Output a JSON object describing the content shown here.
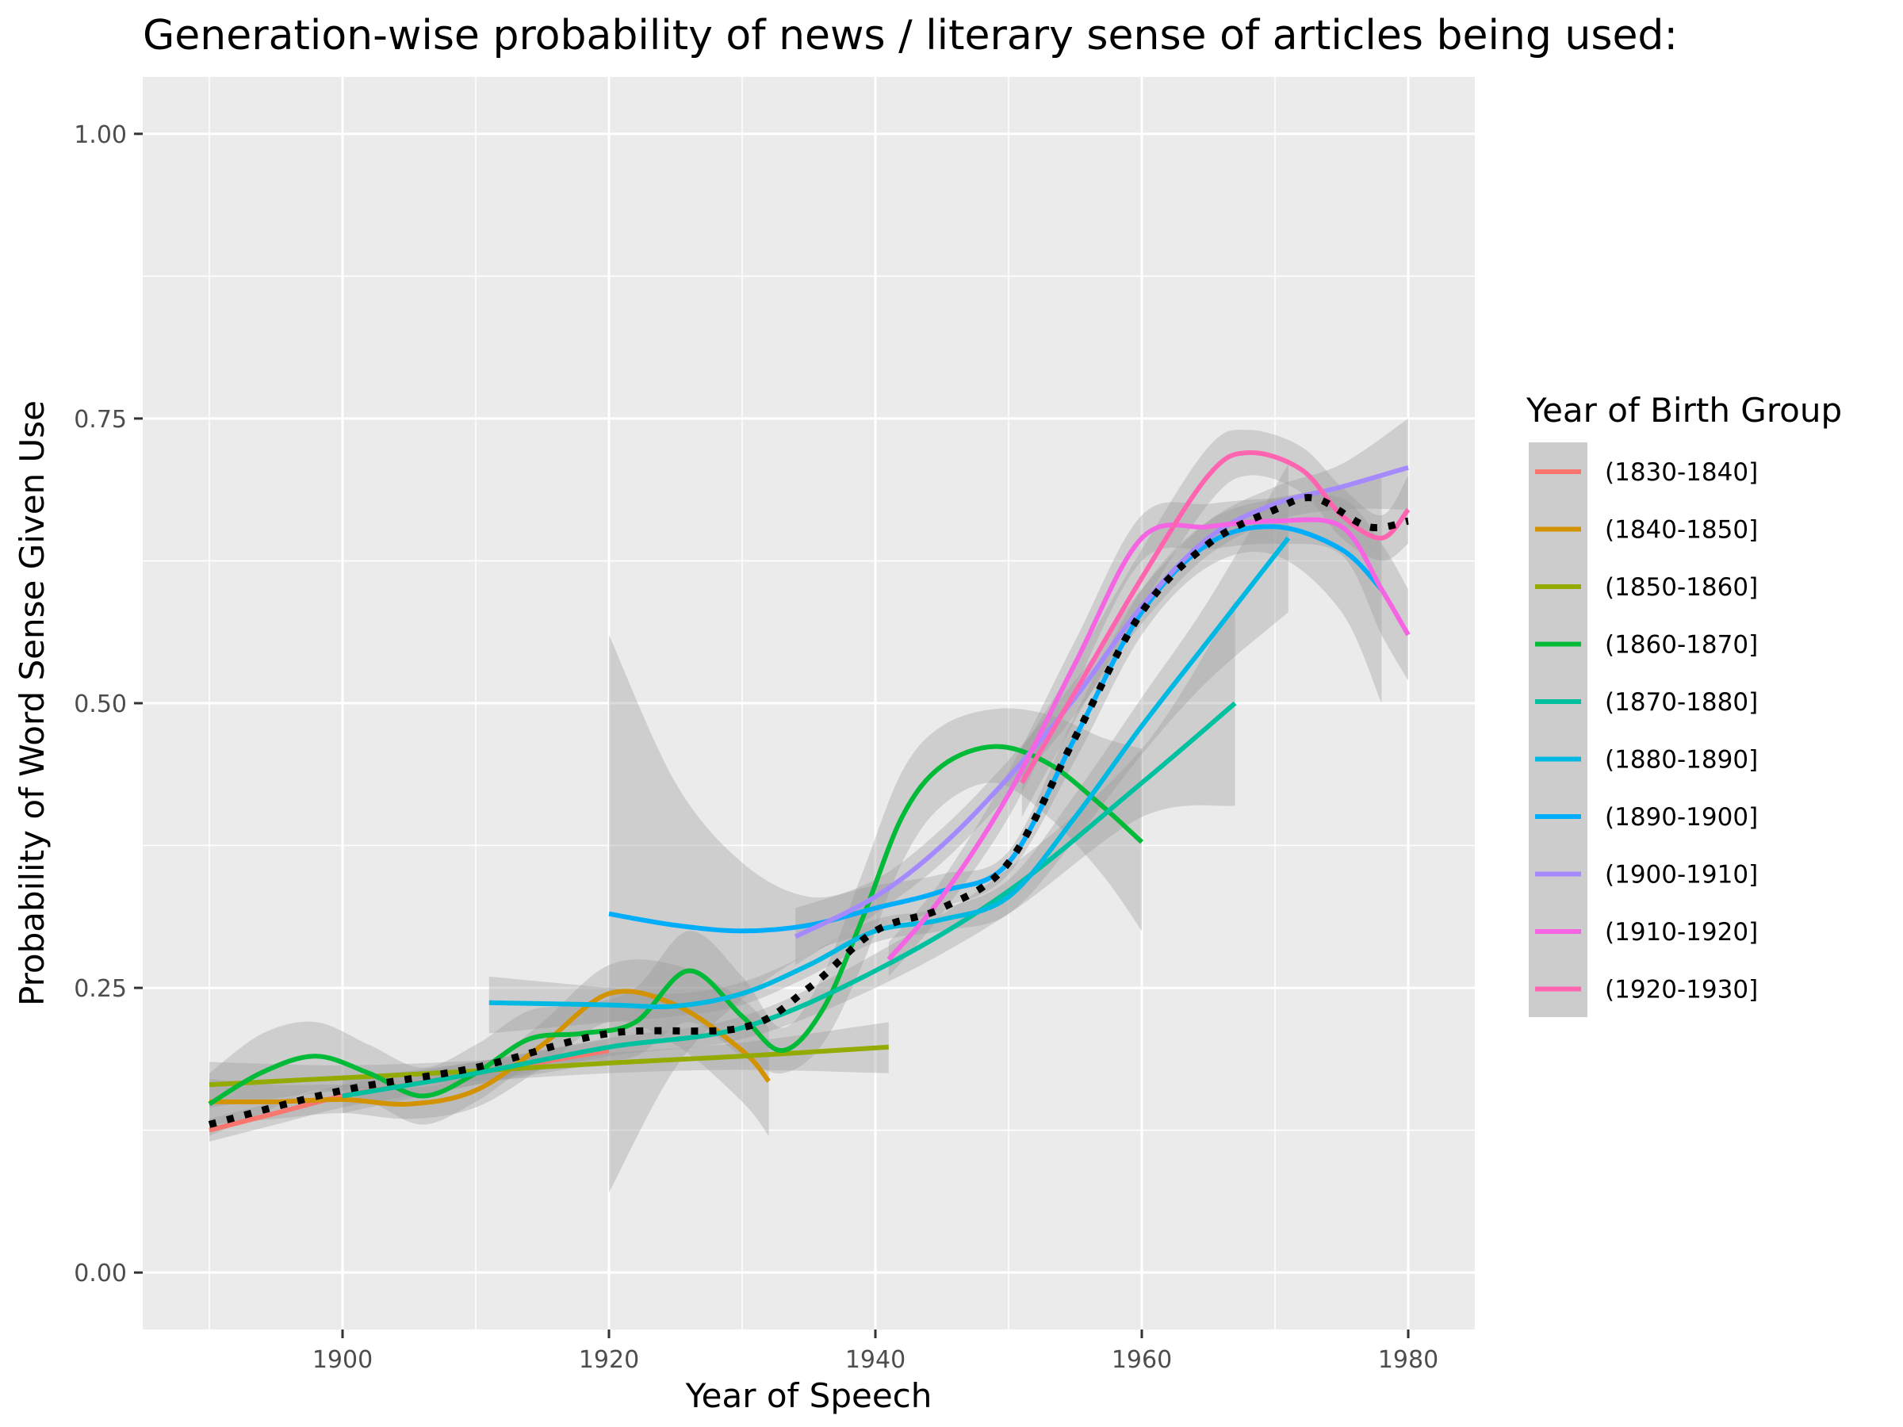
{
  "chart_data": {
    "type": "line",
    "title": "Generation-wise probability of news / literary sense of articles being used:",
    "xlabel": "Year of Speech",
    "ylabel": "Probability of Word Sense Given Use",
    "xlim": [
      1885,
      1985
    ],
    "ylim": [
      -0.05,
      1.05
    ],
    "x_ticks": [
      1900,
      1920,
      1940,
      1960,
      1980
    ],
    "x_tick_labels": [
      "1900",
      "1920",
      "1940",
      "1960",
      "1980"
    ],
    "y_ticks": [
      0,
      0.25,
      0.5,
      0.75,
      1
    ],
    "y_tick_labels": [
      "0.00",
      "0.25",
      "0.50",
      "0.75",
      "1.00"
    ],
    "grid": true,
    "legend": {
      "title": "Year of Birth Group",
      "position": "right"
    },
    "series": [
      {
        "name": "(1830-1840]",
        "color": "#F8766D",
        "x": [
          1890,
          1895,
          1900,
          1905,
          1910,
          1915,
          1920
        ],
        "y": [
          0.125,
          0.14,
          0.155,
          0.165,
          0.175,
          0.185,
          0.195
        ],
        "band_lo": [
          0.115,
          0.13,
          0.145,
          0.155,
          0.165,
          0.175,
          0.185
        ],
        "band_hi": [
          0.135,
          0.15,
          0.165,
          0.175,
          0.185,
          0.195,
          0.205
        ]
      },
      {
        "name": "(1840-1850]",
        "color": "#D39200",
        "x": [
          1890,
          1895,
          1900,
          1905,
          1910,
          1915,
          1920,
          1925,
          1930,
          1932
        ],
        "y": [
          0.15,
          0.15,
          0.152,
          0.148,
          0.16,
          0.2,
          0.245,
          0.235,
          0.195,
          0.168
        ],
        "band_lo": [
          0.13,
          0.135,
          0.14,
          0.135,
          0.145,
          0.18,
          0.22,
          0.2,
          0.15,
          0.12
        ],
        "band_hi": [
          0.17,
          0.165,
          0.165,
          0.162,
          0.175,
          0.22,
          0.27,
          0.27,
          0.24,
          0.215
        ]
      },
      {
        "name": "(1850-1860]",
        "color": "#93AA00",
        "x": [
          1890,
          1900,
          1910,
          1920,
          1930,
          1941
        ],
        "y": [
          0.165,
          0.171,
          0.177,
          0.184,
          0.19,
          0.198
        ],
        "band_lo": [
          0.145,
          0.16,
          0.168,
          0.175,
          0.178,
          0.175
        ],
        "band_hi": [
          0.185,
          0.182,
          0.186,
          0.193,
          0.202,
          0.22
        ]
      },
      {
        "name": "(1860-1870]",
        "color": "#00BA38",
        "x": [
          1890,
          1894,
          1898,
          1902,
          1906,
          1910,
          1914,
          1918,
          1922,
          1926,
          1930,
          1933,
          1936,
          1939,
          1942,
          1945,
          1949,
          1953,
          1957,
          1960
        ],
        "y": [
          0.148,
          0.176,
          0.19,
          0.175,
          0.155,
          0.175,
          0.205,
          0.21,
          0.22,
          0.265,
          0.225,
          0.195,
          0.23,
          0.31,
          0.4,
          0.445,
          0.462,
          0.447,
          0.41,
          0.378
        ],
        "band_lo": [
          0.12,
          0.14,
          0.16,
          0.15,
          0.13,
          0.15,
          0.18,
          0.185,
          0.19,
          0.22,
          0.19,
          0.175,
          0.2,
          0.27,
          0.36,
          0.41,
          0.43,
          0.4,
          0.35,
          0.3
        ],
        "band_hi": [
          0.175,
          0.21,
          0.22,
          0.2,
          0.18,
          0.2,
          0.23,
          0.235,
          0.25,
          0.3,
          0.26,
          0.215,
          0.26,
          0.35,
          0.44,
          0.48,
          0.495,
          0.49,
          0.47,
          0.46
        ]
      },
      {
        "name": "(1870-1880]",
        "color": "#00C19F",
        "x": [
          1900,
          1910,
          1920,
          1930,
          1940,
          1950,
          1960,
          1967
        ],
        "y": [
          0.155,
          0.175,
          0.198,
          0.215,
          0.265,
          0.335,
          0.43,
          0.5
        ],
        "band_lo": [
          0.14,
          0.165,
          0.19,
          0.205,
          0.25,
          0.315,
          0.4,
          0.41
        ],
        "band_hi": [
          0.17,
          0.185,
          0.206,
          0.225,
          0.28,
          0.355,
          0.46,
          0.59
        ]
      },
      {
        "name": "(1880-1890]",
        "color": "#00B9E3",
        "x": [
          1911,
          1920,
          1925,
          1930,
          1935,
          1940,
          1945,
          1950,
          1955,
          1960,
          1965,
          1971
        ],
        "y": [
          0.237,
          0.235,
          0.234,
          0.245,
          0.27,
          0.3,
          0.31,
          0.33,
          0.4,
          0.48,
          0.555,
          0.645
        ],
        "band_lo": [
          0.21,
          0.22,
          0.225,
          0.235,
          0.26,
          0.29,
          0.3,
          0.315,
          0.38,
          0.455,
          0.52,
          0.58
        ],
        "band_hi": [
          0.26,
          0.25,
          0.245,
          0.255,
          0.28,
          0.31,
          0.32,
          0.345,
          0.42,
          0.505,
          0.59,
          0.71
        ]
      },
      {
        "name": "(1890-1900]",
        "color": "#00ADFA",
        "x": [
          1920,
          1925,
          1930,
          1935,
          1940,
          1945,
          1950,
          1955,
          1960,
          1965,
          1970,
          1975,
          1978
        ],
        "y": [
          0.315,
          0.305,
          0.3,
          0.305,
          0.32,
          0.335,
          0.36,
          0.47,
          0.58,
          0.64,
          0.655,
          0.635,
          0.6
        ],
        "band_lo": [
          0.07,
          0.18,
          0.24,
          0.28,
          0.3,
          0.32,
          0.35,
          0.45,
          0.56,
          0.62,
          0.63,
          0.58,
          0.5
        ],
        "band_hi": [
          0.56,
          0.43,
          0.36,
          0.33,
          0.34,
          0.35,
          0.37,
          0.49,
          0.6,
          0.66,
          0.68,
          0.69,
          0.7
        ]
      },
      {
        "name": "(1900-1910]",
        "color": "#A58AFF",
        "x": [
          1934,
          1940,
          1945,
          1950,
          1955,
          1960,
          1965,
          1970,
          1975,
          1980
        ],
        "y": [
          0.295,
          0.33,
          0.375,
          0.435,
          0.505,
          0.585,
          0.645,
          0.675,
          0.69,
          0.707
        ],
        "band_lo": [
          0.27,
          0.315,
          0.36,
          0.42,
          0.49,
          0.57,
          0.63,
          0.66,
          0.67,
          0.67
        ],
        "band_hi": [
          0.32,
          0.345,
          0.39,
          0.45,
          0.52,
          0.6,
          0.66,
          0.69,
          0.71,
          0.75
        ]
      },
      {
        "name": "(1910-1920]",
        "color": "#F564E3",
        "x": [
          1941,
          1945,
          1950,
          1955,
          1960,
          1965,
          1970,
          1975,
          1978,
          1980
        ],
        "y": [
          0.275,
          0.33,
          0.42,
          0.535,
          0.645,
          0.655,
          0.66,
          0.655,
          0.6,
          0.56
        ],
        "band_lo": [
          0.26,
          0.315,
          0.4,
          0.515,
          0.625,
          0.635,
          0.64,
          0.63,
          0.56,
          0.52
        ],
        "band_hi": [
          0.29,
          0.345,
          0.44,
          0.555,
          0.665,
          0.675,
          0.68,
          0.68,
          0.64,
          0.6
        ]
      },
      {
        "name": "(1920-1930]",
        "color": "#FF64B0",
        "x": [
          1951,
          1955,
          1960,
          1965,
          1968,
          1972,
          1975,
          1978,
          1980
        ],
        "y": [
          0.43,
          0.51,
          0.61,
          0.7,
          0.72,
          0.705,
          0.665,
          0.645,
          0.67
        ],
        "band_lo": [
          0.4,
          0.485,
          0.585,
          0.675,
          0.7,
          0.685,
          0.645,
          0.625,
          0.64
        ],
        "band_hi": [
          0.46,
          0.535,
          0.635,
          0.725,
          0.74,
          0.725,
          0.69,
          0.665,
          0.7
        ]
      }
    ],
    "overall_trend": {
      "style": "dotted",
      "color": "#000000",
      "x": [
        1890,
        1900,
        1910,
        1920,
        1930,
        1935,
        1940,
        1945,
        1950,
        1955,
        1960,
        1965,
        1970,
        1973,
        1977,
        1980
      ],
      "y": [
        0.13,
        0.16,
        0.18,
        0.21,
        0.215,
        0.25,
        0.3,
        0.32,
        0.36,
        0.47,
        0.58,
        0.64,
        0.67,
        0.68,
        0.655,
        0.66
      ]
    }
  }
}
